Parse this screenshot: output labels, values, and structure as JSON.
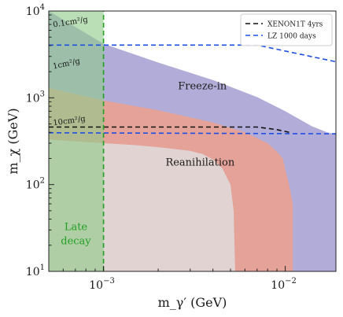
{
  "chart_data": {
    "type": "area",
    "xlabel": "m_γ′ (GeV)",
    "ylabel": "m_χ (GeV)",
    "xscale": "log",
    "yscale": "log",
    "xlim": [
      0.0005,
      0.019
    ],
    "ylim": [
      10,
      10000
    ],
    "x_ticks": [
      {
        "value": 0.001,
        "base": "10",
        "exp": "−3"
      },
      {
        "value": 0.01,
        "base": "10",
        "exp": "−2"
      }
    ],
    "y_ticks": [
      {
        "value": 10,
        "base": "10",
        "exp": "1"
      },
      {
        "value": 100,
        "base": "10",
        "exp": "2"
      },
      {
        "value": 1000,
        "base": "10",
        "exp": "3"
      },
      {
        "value": 10000,
        "base": "10",
        "exp": "4"
      }
    ],
    "regions": [
      {
        "name": "Freeze-in",
        "color": "#9f97cf",
        "polygon": [
          [
            0.0005,
            10000
          ],
          [
            0.001,
            4200
          ],
          [
            0.002,
            2550
          ],
          [
            0.004,
            1600
          ],
          [
            0.007,
            1020
          ],
          [
            0.01,
            700
          ],
          [
            0.014,
            470
          ],
          [
            0.017,
            400
          ],
          [
            0.019,
            380
          ],
          [
            0.019,
            10
          ],
          [
            0.0005,
            10
          ]
        ]
      },
      {
        "name": "Reanihilation",
        "color": "#f0a088",
        "polygon": [
          [
            0.0005,
            1300
          ],
          [
            0.001,
            930
          ],
          [
            0.002,
            720
          ],
          [
            0.004,
            520
          ],
          [
            0.006,
            400
          ],
          [
            0.008,
            300
          ],
          [
            0.009,
            240
          ],
          [
            0.0097,
            200
          ],
          [
            0.01,
            150
          ],
          [
            0.0105,
            100
          ],
          [
            0.011,
            60
          ],
          [
            0.011,
            10
          ],
          [
            0.0005,
            10
          ]
        ]
      },
      {
        "name": "",
        "color": "#e0e0e0",
        "polygon": [
          [
            0.0005,
            330
          ],
          [
            0.001,
            300
          ],
          [
            0.0015,
            285
          ],
          [
            0.002,
            270
          ],
          [
            0.003,
            245
          ],
          [
            0.0035,
            225
          ],
          [
            0.004,
            195
          ],
          [
            0.0045,
            155
          ],
          [
            0.005,
            100
          ],
          [
            0.0052,
            50
          ],
          [
            0.0053,
            10
          ],
          [
            0.0005,
            10
          ]
        ]
      },
      {
        "name": "Late decay",
        "color": "#8fcc8a",
        "polygon": [
          [
            0.0005,
            10000
          ],
          [
            0.001,
            10000
          ],
          [
            0.001,
            10
          ],
          [
            0.0005,
            10
          ]
        ]
      }
    ],
    "series": [
      {
        "name": "XENON1T 4yrs",
        "color": "#111111",
        "style": "dashed",
        "points": [
          [
            0.0005,
            460
          ],
          [
            0.007,
            460
          ],
          [
            0.009,
            430
          ],
          [
            0.0105,
            400
          ]
        ]
      },
      {
        "name": "LZ 1000 days",
        "color": "#1f4fe0",
        "style": "dashed",
        "points": [
          [
            0.0005,
            4050
          ],
          [
            0.007,
            4050
          ],
          [
            0.019,
            2600
          ]
        ]
      },
      {
        "name": "",
        "color": "#1f4fe0",
        "style": "dashed",
        "points": [
          [
            0.0005,
            395
          ],
          [
            0.019,
            385
          ]
        ]
      },
      {
        "name": "",
        "color": "#22a022",
        "style": "dashed",
        "points": [
          [
            0.001,
            10
          ],
          [
            0.001,
            10000
          ]
        ]
      }
    ],
    "legend": {
      "placement": "top-right",
      "entries": [
        "XENON1T 4yrs",
        "LZ 1000 days"
      ]
    },
    "annotations": [
      {
        "text": "0.1cm²/g",
        "x": 0.00053,
        "y": 6500,
        "rotate": -9
      },
      {
        "text": "1cm²/g",
        "x": 0.00053,
        "y": 2150,
        "rotate": -12
      },
      {
        "text": "10cm²/g",
        "x": 0.00053,
        "y": 480,
        "rotate": -8
      },
      {
        "text": "Freeze-in",
        "x": 0.0035,
        "y": 1250,
        "rotate": 0
      },
      {
        "text": "Reanihilation",
        "x": 0.0034,
        "y": 165,
        "rotate": 0
      },
      {
        "text": "Late",
        "x": 0.000705,
        "y": 30,
        "rotate": 0,
        "color": "#22a022"
      },
      {
        "text": "decay",
        "x": 0.000705,
        "y": 20.5,
        "rotate": 0,
        "color": "#22a022"
      }
    ]
  }
}
